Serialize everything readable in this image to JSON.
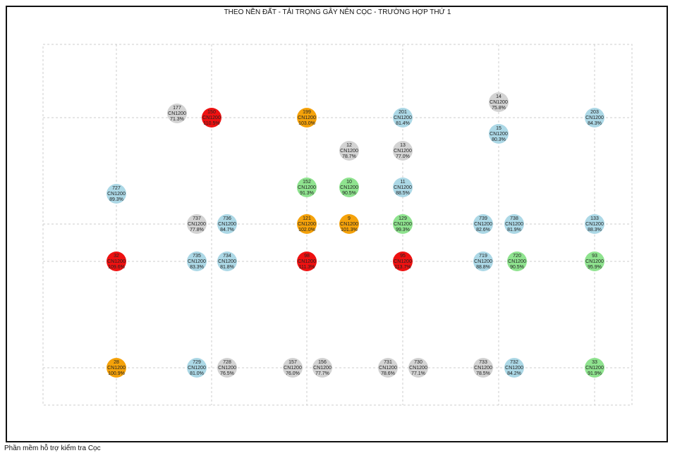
{
  "title": "THEO NỀN ĐẤT - TẢI TRỌNG GÂY NÊN CỌC - TRƯỜNG HỢP THỨ 1",
  "footer": "Phần mềm hỗ trợ kiểm tra Cọc",
  "colors": {
    "red": "#ee1111",
    "orange": "#f5a20a",
    "green": "#8fe38f",
    "blue": "#acd8e6",
    "gray": "#d3d3d3",
    "grid": "#cccccc"
  },
  "piles": [
    {
      "id": "177",
      "type": "CN1200",
      "pct": "71.3%",
      "status": "gray"
    },
    {
      "id": "150",
      "type": "CN1200",
      "pct": "110.5%",
      "status": "red"
    },
    {
      "id": "199",
      "type": "CN1200",
      "pct": "103.0%",
      "status": "orange"
    },
    {
      "id": "201",
      "type": "CN1200",
      "pct": "81.4%",
      "status": "blue"
    },
    {
      "id": "14",
      "type": "CN1200",
      "pct": "75.8%",
      "status": "gray"
    },
    {
      "id": "15",
      "type": "CN1200",
      "pct": "80.3%",
      "status": "blue"
    },
    {
      "id": "203",
      "type": "CN1200",
      "pct": "84.3%",
      "status": "blue"
    },
    {
      "id": "12",
      "type": "CN1200",
      "pct": "78.7%",
      "status": "gray"
    },
    {
      "id": "13",
      "type": "CN1200",
      "pct": "77.0%",
      "status": "gray"
    },
    {
      "id": "727",
      "type": "CN1200",
      "pct": "89.3%",
      "status": "blue"
    },
    {
      "id": "152",
      "type": "CN1200",
      "pct": "91.3%",
      "status": "green"
    },
    {
      "id": "10",
      "type": "CN1200",
      "pct": "90.5%",
      "status": "green"
    },
    {
      "id": "11",
      "type": "CN1200",
      "pct": "88.5%",
      "status": "blue"
    },
    {
      "id": "737",
      "type": "CN1200",
      "pct": "77.8%",
      "status": "gray"
    },
    {
      "id": "736",
      "type": "CN1200",
      "pct": "84.7%",
      "status": "blue"
    },
    {
      "id": "121",
      "type": "CN1200",
      "pct": "102.0%",
      "status": "orange"
    },
    {
      "id": "9",
      "type": "CN1200",
      "pct": "101.3%",
      "status": "orange"
    },
    {
      "id": "129",
      "type": "CN1200",
      "pct": "99.3%",
      "status": "green"
    },
    {
      "id": "739",
      "type": "CN1200",
      "pct": "82.6%",
      "status": "blue"
    },
    {
      "id": "738",
      "type": "CN1200",
      "pct": "81.9%",
      "status": "blue"
    },
    {
      "id": "133",
      "type": "CN1200",
      "pct": "88.3%",
      "status": "blue"
    },
    {
      "id": "32",
      "type": "CN1200",
      "pct": "109.6%",
      "status": "red"
    },
    {
      "id": "735",
      "type": "CN1200",
      "pct": "83.3%",
      "status": "blue"
    },
    {
      "id": "734",
      "type": "CN1200",
      "pct": "81.8%",
      "status": "blue"
    },
    {
      "id": "98",
      "type": "CN1200",
      "pct": "111.3%",
      "status": "red"
    },
    {
      "id": "95",
      "type": "CN1200",
      "pct": "113.7%",
      "status": "red"
    },
    {
      "id": "719",
      "type": "CN1200",
      "pct": "88.8%",
      "status": "blue"
    },
    {
      "id": "720",
      "type": "CN1200",
      "pct": "90.5%",
      "status": "green"
    },
    {
      "id": "93",
      "type": "CN1200",
      "pct": "95.9%",
      "status": "green"
    },
    {
      "id": "28",
      "type": "CN1200",
      "pct": "100.9%",
      "status": "orange"
    },
    {
      "id": "729",
      "type": "CN1200",
      "pct": "81.0%",
      "status": "blue"
    },
    {
      "id": "728",
      "type": "CN1200",
      "pct": "76.5%",
      "status": "gray"
    },
    {
      "id": "157",
      "type": "CN1200",
      "pct": "76.0%",
      "status": "gray"
    },
    {
      "id": "156",
      "type": "CN1200",
      "pct": "77.7%",
      "status": "gray"
    },
    {
      "id": "731",
      "type": "CN1200",
      "pct": "78.6%",
      "status": "gray"
    },
    {
      "id": "730",
      "type": "CN1200",
      "pct": "77.1%",
      "status": "gray"
    },
    {
      "id": "733",
      "type": "CN1200",
      "pct": "78.5%",
      "status": "gray"
    },
    {
      "id": "732",
      "type": "CN1200",
      "pct": "84.2%",
      "status": "blue"
    },
    {
      "id": "33",
      "type": "CN1200",
      "pct": "91.9%",
      "status": "green"
    }
  ]
}
